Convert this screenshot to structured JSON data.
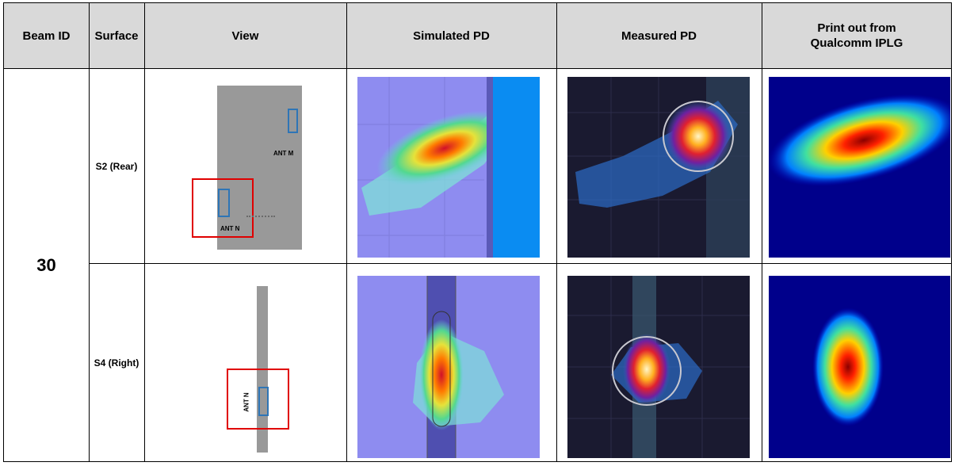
{
  "header": {
    "beam_id": "Beam ID",
    "surface": "Surface",
    "view": "View",
    "simulated": "Simulated PD",
    "measured": "Measured PD",
    "printout_line1": "Print out from",
    "printout_line2": "Qualcomm IPLG"
  },
  "beam_id_value": "30",
  "rows": [
    {
      "surface": "S2 (Rear)",
      "ant_labels": [
        "ANT M",
        "ANT N"
      ]
    },
    {
      "surface": "S4 (Right)",
      "ant_labels": [
        "ANT N"
      ]
    }
  ],
  "colors": {
    "header_bg": "#d9d9d9",
    "device_gray": "#999999",
    "antenna_blue": "#2e75b6",
    "highlight_red": "#e00000",
    "sim_bg": "#8e8cf0",
    "meas_bg": "#1a1a30",
    "qc_bg": "#00008b"
  }
}
